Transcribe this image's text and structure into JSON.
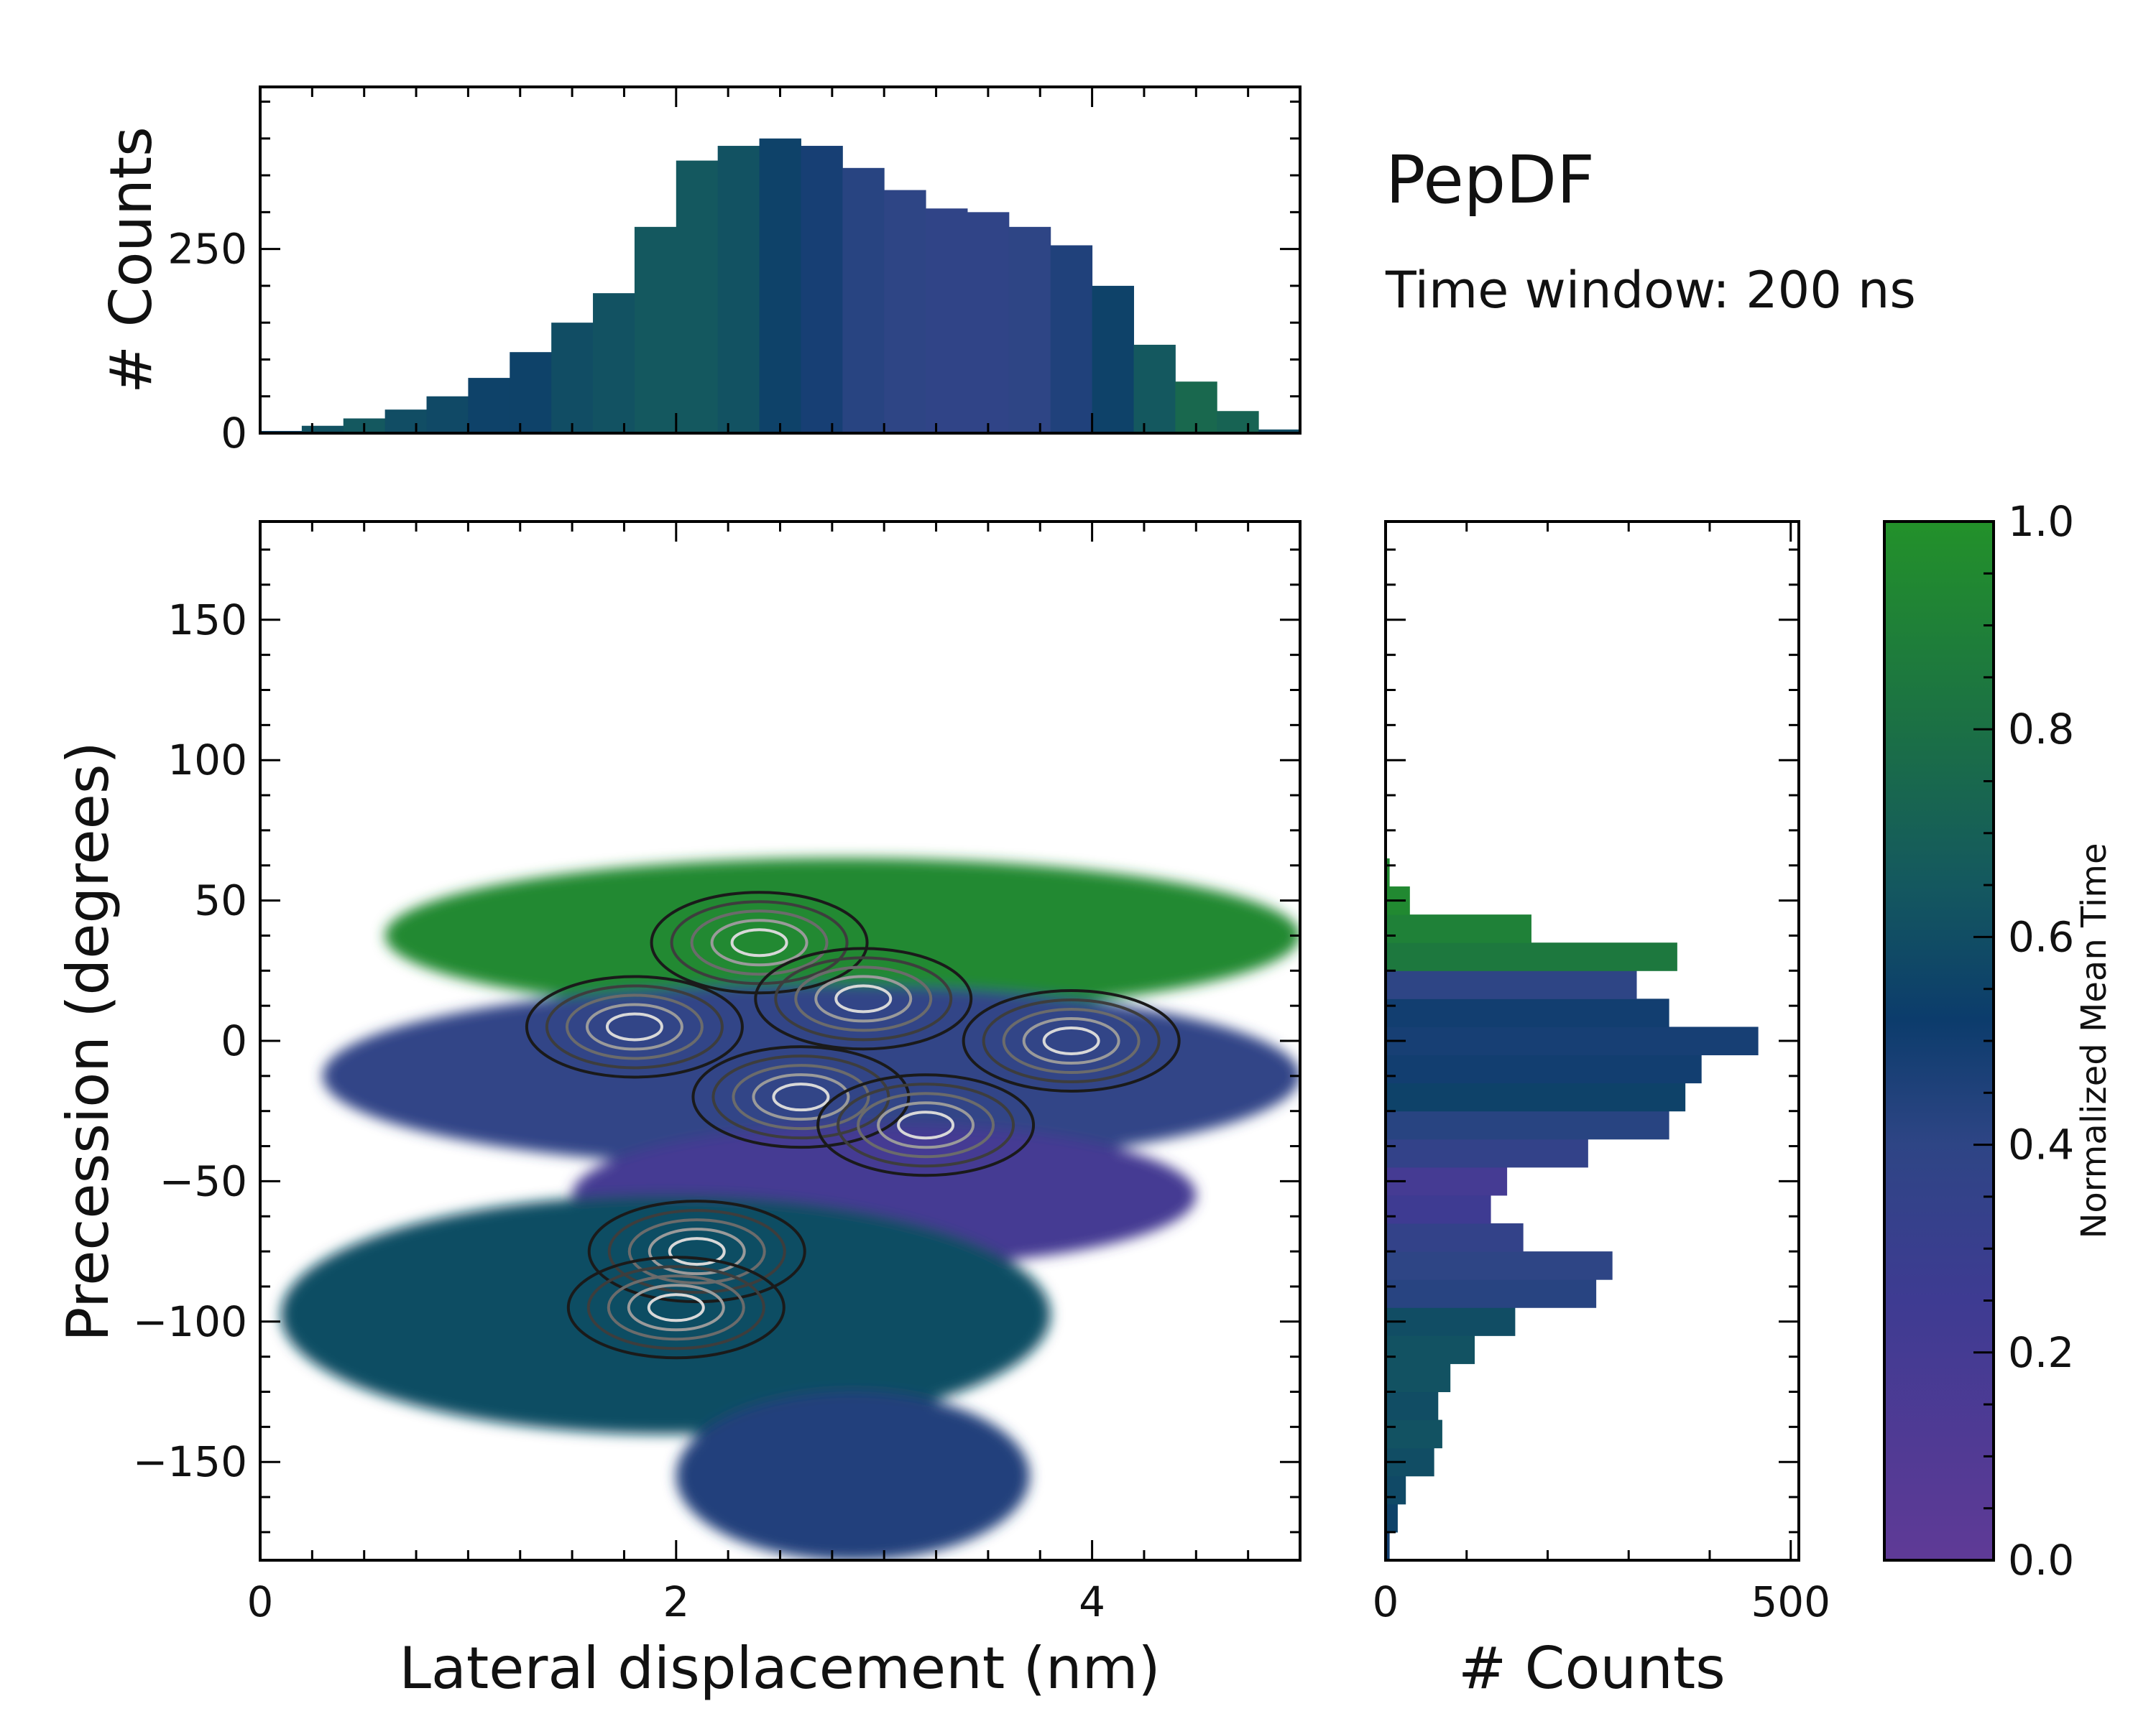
{
  "title": "PepDF",
  "subtitle": "Time window: 200 ns",
  "colors": {
    "low": "#5f3a96",
    "mid_low": "#2e4585",
    "mid": "#0c3c6c",
    "mid_high": "#17675a",
    "high": "#23912a",
    "frame": "#000000"
  },
  "chart_data": [
    {
      "type": "histogram",
      "name": "top-marginal",
      "ylabel": "# Counts",
      "xlim": [
        0,
        5
      ],
      "ylim": [
        0,
        470
      ],
      "yticks": [
        0,
        250
      ],
      "ytick_labels": [
        "0",
        "250"
      ],
      "x": [
        0.1,
        0.3,
        0.5,
        0.7,
        0.9,
        1.1,
        1.3,
        1.5,
        1.7,
        1.9,
        2.1,
        2.3,
        2.5,
        2.7,
        2.9,
        3.1,
        3.3,
        3.5,
        3.7,
        3.9,
        4.1,
        4.3,
        4.5,
        4.7,
        4.9
      ],
      "counts": [
        3,
        10,
        20,
        32,
        50,
        75,
        110,
        150,
        190,
        280,
        370,
        390,
        400,
        390,
        360,
        330,
        305,
        300,
        280,
        255,
        200,
        120,
        70,
        30,
        5
      ],
      "mean_time": [
        0.55,
        0.62,
        0.65,
        0.6,
        0.58,
        0.55,
        0.55,
        0.6,
        0.62,
        0.65,
        0.65,
        0.62,
        0.55,
        0.48,
        0.42,
        0.4,
        0.38,
        0.38,
        0.4,
        0.45,
        0.55,
        0.65,
        0.75,
        0.72,
        0.6
      ]
    },
    {
      "type": "heatmap",
      "name": "main-2d-histogram",
      "xlabel": "Lateral displacement (nm)",
      "ylabel": "Precession (degrees)",
      "xlim": [
        0,
        5
      ],
      "ylim": [
        -185,
        185
      ],
      "xticks": [
        0,
        2,
        4
      ],
      "xtick_labels": [
        "0",
        "2",
        "4"
      ],
      "yticks": [
        -150,
        -100,
        -50,
        0,
        50,
        100,
        150
      ],
      "ytick_labels": [
        "−150",
        "−100",
        "−50",
        "0",
        "50",
        "100",
        "150"
      ],
      "color_value": "Normalized Mean Time",
      "overlay": "density contours (dark to light with increasing density)",
      "regions": [
        {
          "name": "upper-green-band",
          "x_range": [
            0.6,
            5.0
          ],
          "y_range": [
            15,
            60
          ],
          "mean_time": 0.95
        },
        {
          "name": "central-blue-core",
          "x_range": [
            0.3,
            5.0
          ],
          "y_range": [
            -40,
            15
          ],
          "mean_time": 0.38
        },
        {
          "name": "violet-middle",
          "x_range": [
            1.5,
            4.5
          ],
          "y_range": [
            -75,
            -35
          ],
          "mean_time": 0.2
        },
        {
          "name": "lower-teal-lobe",
          "x_range": [
            0.1,
            3.8
          ],
          "y_range": [
            -135,
            -60
          ],
          "mean_time": 0.6
        },
        {
          "name": "bottom-tail",
          "x_range": [
            2.0,
            3.7
          ],
          "y_range": [
            -180,
            -130
          ],
          "mean_time": 0.45
        }
      ],
      "density_peaks": [
        {
          "x": 2.4,
          "y": 35
        },
        {
          "x": 2.9,
          "y": 15
        },
        {
          "x": 1.8,
          "y": 5
        },
        {
          "x": 3.9,
          "y": 0
        },
        {
          "x": 2.6,
          "y": -20
        },
        {
          "x": 3.2,
          "y": -30
        },
        {
          "x": 2.1,
          "y": -75
        },
        {
          "x": 2.0,
          "y": -95
        }
      ]
    },
    {
      "type": "histogram",
      "orientation": "horizontal",
      "name": "right-marginal",
      "xlabel": "# Counts",
      "xlim": [
        0,
        510
      ],
      "xticks": [
        0,
        500
      ],
      "xtick_labels": [
        "0",
        "500"
      ],
      "ylim": [
        -185,
        185
      ],
      "y": [
        -180,
        -170,
        -160,
        -150,
        -140,
        -130,
        -120,
        -110,
        -100,
        -90,
        -80,
        -70,
        -60,
        -50,
        -40,
        -30,
        -20,
        -10,
        0,
        10,
        20,
        30,
        40,
        50,
        60
      ],
      "counts": [
        5,
        15,
        25,
        60,
        70,
        65,
        80,
        110,
        160,
        260,
        280,
        170,
        130,
        150,
        250,
        350,
        370,
        390,
        460,
        350,
        310,
        360,
        180,
        30,
        5
      ],
      "mean_time": [
        0.5,
        0.55,
        0.58,
        0.6,
        0.62,
        0.6,
        0.62,
        0.62,
        0.6,
        0.42,
        0.4,
        0.35,
        0.25,
        0.2,
        0.35,
        0.42,
        0.55,
        0.5,
        0.48,
        0.5,
        0.4,
        0.85,
        0.9,
        0.95,
        0.95
      ]
    },
    {
      "type": "colorbar",
      "name": "colorbar",
      "label": "Normalized Mean Time",
      "range": [
        0,
        1
      ],
      "ticks": [
        0,
        0.2,
        0.4,
        0.6,
        0.8,
        1.0
      ],
      "tick_labels": [
        "0.0",
        "0.2",
        "0.4",
        "0.6",
        "0.8",
        "1.0"
      ]
    }
  ]
}
